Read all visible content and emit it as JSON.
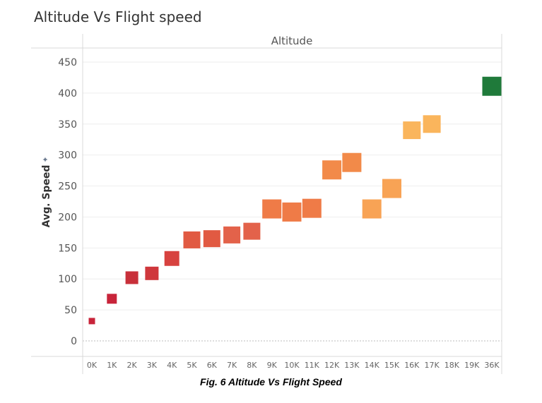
{
  "title": "Altitude Vs Flight speed",
  "caption": "Fig. 6 Altitude Vs Flight Speed",
  "chart_data": {
    "type": "scatter",
    "title": "Altitude Vs Flight speed",
    "column_header": "Altitude",
    "xlabel": "",
    "ylabel": "Avg. Speed",
    "ylim": [
      0,
      450
    ],
    "y_ticks": [
      0,
      50,
      100,
      150,
      200,
      250,
      300,
      350,
      400,
      450
    ],
    "categories": [
      "0K",
      "1K",
      "2K",
      "3K",
      "4K",
      "5K",
      "6K",
      "7K",
      "8K",
      "9K",
      "10K",
      "11K",
      "12K",
      "13K",
      "14K",
      "15K",
      "16K",
      "17K",
      "18K",
      "19K",
      "36K"
    ],
    "values": [
      32,
      68,
      102,
      109,
      133,
      163,
      165,
      171,
      177,
      213,
      208,
      214,
      276,
      288,
      213,
      246,
      340,
      350,
      null,
      null,
      411
    ],
    "colors": [
      "#c8243a",
      "#c8243a",
      "#c8303a",
      "#cf373c",
      "#d7423f",
      "#e15a42",
      "#e15a42",
      "#e3624a",
      "#e3624a",
      "#ef7b47",
      "#ef7b47",
      "#ef7b47",
      "#f28a49",
      "#f28a49",
      "#f8a355",
      "#f8a355",
      "#fab55c",
      "#fab55c",
      "",
      "",
      "#1f7a3a"
    ],
    "marker_sizes": [
      9,
      14,
      18,
      19,
      21,
      24,
      24,
      24,
      24,
      27,
      27,
      27,
      27,
      27,
      27,
      27,
      25,
      25,
      0,
      0,
      27
    ],
    "grid": true
  }
}
